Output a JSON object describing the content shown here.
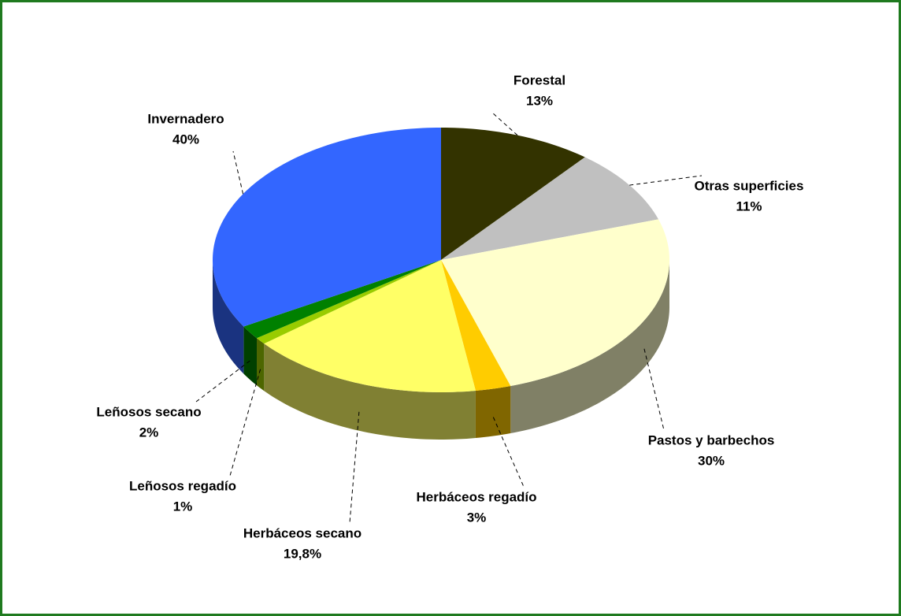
{
  "chart_data": {
    "type": "pie",
    "categories": [
      "Forestal",
      "Otras superficies",
      "Pastos y barbechos",
      "Herbáceos regadío",
      "Herbáceos secano",
      "Leñosos regadío",
      "Leñosos secano",
      "Invernadero"
    ],
    "values": [
      13,
      11,
      30,
      3,
      19.8,
      1,
      2,
      40
    ],
    "value_labels": [
      "13%",
      "11%",
      "30%",
      "3%",
      "19,8%",
      "1%",
      "2%",
      "40%"
    ],
    "colors": [
      "#333300",
      "#c0c0c0",
      "#ffffcc",
      "#ffcc00",
      "#ffff66",
      "#99cc00",
      "#008000",
      "#3366ff"
    ]
  }
}
